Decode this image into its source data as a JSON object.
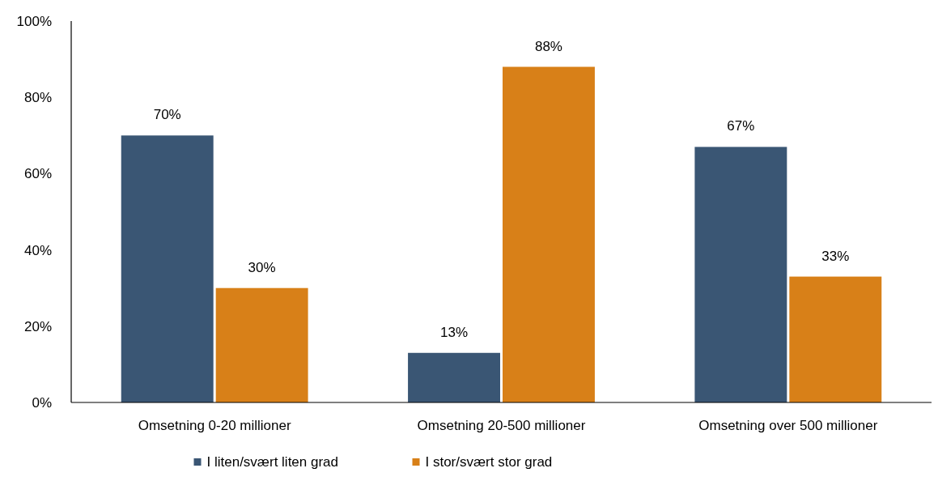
{
  "chart_data": {
    "type": "bar",
    "categories": [
      "Omsetning 0-20 millioner",
      "Omsetning 20-500 millioner",
      "Omsetning over 500 millioner"
    ],
    "series": [
      {
        "name": "I liten/svært liten grad",
        "color": "#3a5674",
        "values": [
          70,
          13,
          67
        ],
        "value_labels": [
          "70%",
          "13%",
          "67%"
        ]
      },
      {
        "name": "I stor/svært stor grad",
        "color": "#d88018",
        "values": [
          30,
          88,
          33
        ],
        "value_labels": [
          "30%",
          "88%",
          "33%"
        ]
      }
    ],
    "ylim": [
      0,
      100
    ],
    "yticks": [
      {
        "value": 0,
        "label": "0%"
      },
      {
        "value": 20,
        "label": "20%"
      },
      {
        "value": 40,
        "label": "40%"
      },
      {
        "value": 60,
        "label": "60%"
      },
      {
        "value": 80,
        "label": "80%"
      },
      {
        "value": 100,
        "label": "100%"
      }
    ],
    "grid": false,
    "legend": "bottom"
  }
}
